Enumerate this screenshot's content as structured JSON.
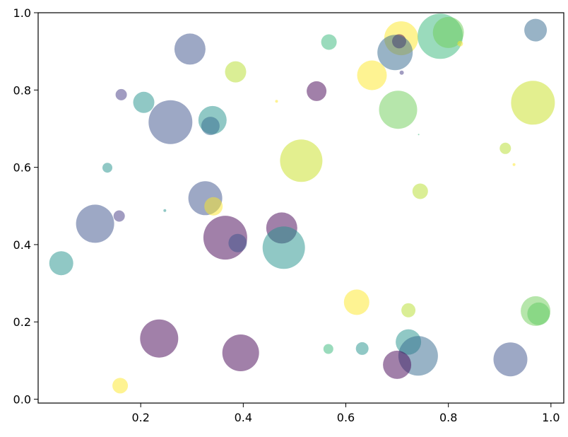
{
  "chart_data": {
    "type": "scatter",
    "title": "",
    "xlabel": "",
    "ylabel": "",
    "xlim": [
      0.0,
      1.025
    ],
    "ylim": [
      -0.01,
      1.0
    ],
    "x_ticks": [
      "0.2",
      "0.4",
      "0.6",
      "0.8",
      "1.0"
    ],
    "y_ticks": [
      "0.0",
      "0.2",
      "0.4",
      "0.6",
      "0.8",
      "1.0"
    ],
    "grid": false,
    "legend": "none",
    "alpha": 0.5,
    "points": [
      {
        "x": 0.296,
        "y": 0.906,
        "size": 22,
        "color": "#3b528b"
      },
      {
        "x": 0.385,
        "y": 0.847,
        "size": 15,
        "color": "#b5de2b"
      },
      {
        "x": 0.567,
        "y": 0.924,
        "size": 11,
        "color": "#35b779"
      },
      {
        "x": 0.708,
        "y": 0.934,
        "size": 24,
        "color": "#fde725"
      },
      {
        "x": 0.704,
        "y": 0.926,
        "size": 10,
        "color": "#440154"
      },
      {
        "x": 0.696,
        "y": 0.897,
        "size": 25,
        "color": "#31688e"
      },
      {
        "x": 0.784,
        "y": 0.939,
        "size": 32,
        "color": "#35b779"
      },
      {
        "x": 0.8,
        "y": 0.949,
        "size": 22,
        "color": "#6ece58"
      },
      {
        "x": 0.823,
        "y": 0.92,
        "size": 4,
        "color": "#fde725"
      },
      {
        "x": 0.97,
        "y": 0.955,
        "size": 16,
        "color": "#31688e"
      },
      {
        "x": 0.162,
        "y": 0.788,
        "size": 8,
        "color": "#443983"
      },
      {
        "x": 0.206,
        "y": 0.768,
        "size": 15,
        "color": "#21918c"
      },
      {
        "x": 0.258,
        "y": 0.717,
        "size": 31,
        "color": "#3b528b"
      },
      {
        "x": 0.34,
        "y": 0.722,
        "size": 20,
        "color": "#21918c"
      },
      {
        "x": 0.336,
        "y": 0.707,
        "size": 13,
        "color": "#31688e"
      },
      {
        "x": 0.465,
        "y": 0.771,
        "size": 2,
        "color": "#fde725"
      },
      {
        "x": 0.543,
        "y": 0.797,
        "size": 14,
        "color": "#440154"
      },
      {
        "x": 0.651,
        "y": 0.838,
        "size": 21,
        "color": "#fde725"
      },
      {
        "x": 0.709,
        "y": 0.845,
        "size": 3,
        "color": "#443983"
      },
      {
        "x": 0.702,
        "y": 0.749,
        "size": 27,
        "color": "#6ece58"
      },
      {
        "x": 0.742,
        "y": 0.685,
        "size": 1,
        "color": "#35b779"
      },
      {
        "x": 0.965,
        "y": 0.767,
        "size": 31,
        "color": "#c8e020"
      },
      {
        "x": 0.911,
        "y": 0.649,
        "size": 8,
        "color": "#b5de2b"
      },
      {
        "x": 0.928,
        "y": 0.607,
        "size": 2,
        "color": "#fde725"
      },
      {
        "x": 0.135,
        "y": 0.599,
        "size": 7,
        "color": "#21918c"
      },
      {
        "x": 0.247,
        "y": 0.488,
        "size": 2,
        "color": "#21918c"
      },
      {
        "x": 0.513,
        "y": 0.617,
        "size": 30,
        "color": "#c8e020"
      },
      {
        "x": 0.745,
        "y": 0.538,
        "size": 11,
        "color": "#b5de2b"
      },
      {
        "x": 0.111,
        "y": 0.454,
        "size": 27,
        "color": "#3b528b"
      },
      {
        "x": 0.158,
        "y": 0.474,
        "size": 8,
        "color": "#443983"
      },
      {
        "x": 0.326,
        "y": 0.52,
        "size": 24,
        "color": "#3b528b"
      },
      {
        "x": 0.342,
        "y": 0.499,
        "size": 13,
        "color": "#fde725"
      },
      {
        "x": 0.365,
        "y": 0.418,
        "size": 31,
        "color": "#440154"
      },
      {
        "x": 0.389,
        "y": 0.404,
        "size": 13,
        "color": "#3b528b"
      },
      {
        "x": 0.475,
        "y": 0.443,
        "size": 22,
        "color": "#440154"
      },
      {
        "x": 0.479,
        "y": 0.392,
        "size": 30,
        "color": "#21918c"
      },
      {
        "x": 0.045,
        "y": 0.352,
        "size": 17,
        "color": "#21918c"
      },
      {
        "x": 0.621,
        "y": 0.251,
        "size": 18,
        "color": "#fde725"
      },
      {
        "x": 0.722,
        "y": 0.23,
        "size": 10,
        "color": "#b5de2b"
      },
      {
        "x": 0.97,
        "y": 0.228,
        "size": 21,
        "color": "#6ece58"
      },
      {
        "x": 0.976,
        "y": 0.221,
        "size": 16,
        "color": "#5ec962"
      },
      {
        "x": 0.236,
        "y": 0.157,
        "size": 27,
        "color": "#440154"
      },
      {
        "x": 0.395,
        "y": 0.12,
        "size": 26,
        "color": "#440154"
      },
      {
        "x": 0.566,
        "y": 0.13,
        "size": 7,
        "color": "#35b779"
      },
      {
        "x": 0.632,
        "y": 0.131,
        "size": 9,
        "color": "#21918c"
      },
      {
        "x": 0.722,
        "y": 0.148,
        "size": 18,
        "color": "#21918c"
      },
      {
        "x": 0.741,
        "y": 0.112,
        "size": 28,
        "color": "#31688e"
      },
      {
        "x": 0.7,
        "y": 0.089,
        "size": 20,
        "color": "#440154"
      },
      {
        "x": 0.921,
        "y": 0.103,
        "size": 24,
        "color": "#3b528b"
      },
      {
        "x": 0.16,
        "y": 0.035,
        "size": 11,
        "color": "#fde725"
      }
    ]
  }
}
